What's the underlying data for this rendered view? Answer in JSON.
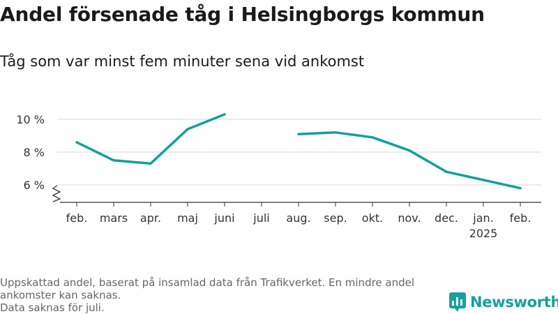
{
  "title": "Andel försenade tåg i Helsingborgs kommun",
  "subtitle": "Tåg som var minst fem minuter sena vid ankomst",
  "colors": {
    "line": "#13a09a",
    "grid": "#d9d9d9",
    "axis": "#333333",
    "brand": "#17a0a0"
  },
  "chart_data": {
    "type": "line",
    "title": "Andel försenade tåg i Helsingborgs kommun",
    "subtitle": "Tåg som var minst fem minuter sena vid ankomst",
    "xlabel": "",
    "ylabel": "",
    "categories": [
      "feb.",
      "mars",
      "apr.",
      "maj",
      "juni",
      "juli",
      "aug.",
      "sep.",
      "okt.",
      "nov.",
      "dec.",
      "jan.",
      "feb."
    ],
    "year_labels": [
      "",
      "",
      "",
      "",
      "",
      "",
      "",
      "",
      "",
      "",
      "",
      "2025",
      ""
    ],
    "series": [
      {
        "values": [
          8.6,
          7.5,
          7.3,
          9.4,
          10.3,
          null,
          9.1,
          9.2,
          8.9,
          8.1,
          6.8,
          6.3,
          5.8
        ]
      }
    ],
    "yticks": [
      6,
      8,
      10
    ],
    "ytick_labels": [
      "6 %",
      "8 %",
      "10 %"
    ],
    "ylim": [
      5.1,
      10.3
    ],
    "axis_break": true,
    "grid": true,
    "legend": "none"
  },
  "footer": {
    "note_1": "Uppskattad andel, baserat på insamlad data från Trafikverket. En mindre andel ankomster kan saknas.",
    "note_2": "Data saknas för juli."
  },
  "brand": {
    "name": "Newsworthy",
    "icon": "newsworthy-logo-icon"
  }
}
